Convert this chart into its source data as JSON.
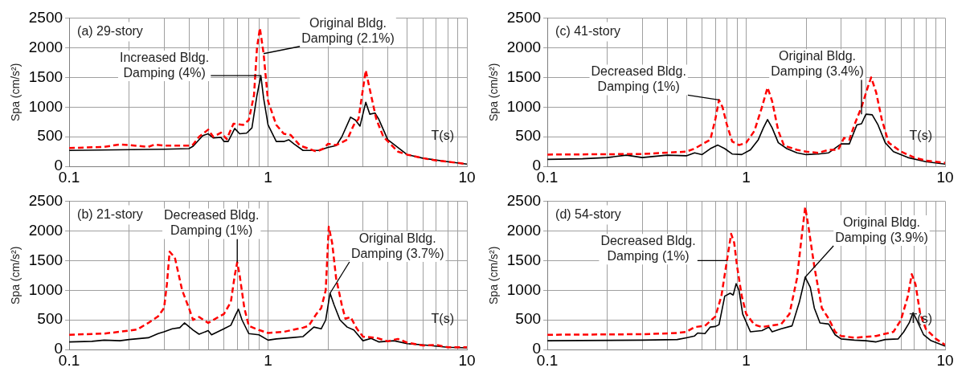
{
  "chart_data": [
    {
      "type": "line",
      "title": "(a) 29-story",
      "xlabel": "T(s)",
      "ylabel": "Spa (cm/s²)",
      "log": "x",
      "grid": true,
      "legend": false,
      "marker": "none",
      "xlim": [
        0.1,
        10
      ],
      "ylim": [
        0,
        2500
      ],
      "yticks": [
        0,
        500,
        1000,
        1500,
        2000,
        2500
      ],
      "xticks": [
        0.1,
        {
          "value": 0.2,
          "label": null
        },
        {
          "value": 0.3,
          "label": null
        },
        {
          "value": 0.4,
          "label": null
        },
        {
          "value": 0.5,
          "label": null
        },
        {
          "value": 0.6,
          "label": null
        },
        {
          "value": 0.7,
          "label": null
        },
        {
          "value": 0.8,
          "label": null
        },
        {
          "value": 0.9,
          "label": null
        },
        1,
        {
          "value": 2,
          "label": null
        },
        {
          "value": 3,
          "label": null
        },
        {
          "value": 4,
          "label": null
        },
        {
          "value": 5,
          "label": null
        },
        {
          "value": 6,
          "label": null
        },
        {
          "value": 7,
          "label": null
        },
        {
          "value": 8,
          "label": null
        },
        {
          "value": 9,
          "label": null
        },
        10
      ],
      "annotations": [
        {
          "text": "Increased Bldg. Damping (4%)",
          "x": 0.92,
          "y": 1530
        },
        {
          "text": "Original Bldg. Damping (2.1%)",
          "x": 0.95,
          "y": 1900
        }
      ],
      "series": [
        {
          "color": "#ff0000",
          "line_style": "dashed",
          "x": [
            0.1,
            0.15,
            0.18,
            0.2,
            0.25,
            0.27,
            0.3,
            0.4,
            0.42,
            0.45,
            0.5,
            0.53,
            0.58,
            0.62,
            0.67,
            0.75,
            0.8,
            0.85,
            0.88,
            0.91,
            0.95,
            1.0,
            1.1,
            1.2,
            1.3,
            1.45,
            1.6,
            1.75,
            1.9,
            2.0,
            2.2,
            2.5,
            2.7,
            2.85,
            3.0,
            3.1,
            3.2,
            3.5,
            3.8,
            4.5,
            5,
            6,
            7,
            8,
            10
          ],
          "values": [
            310,
            330,
            370,
            360,
            330,
            370,
            350,
            350,
            370,
            500,
            620,
            500,
            570,
            460,
            720,
            700,
            780,
            1200,
            2000,
            2330,
            1900,
            1100,
            700,
            550,
            530,
            350,
            300,
            250,
            300,
            380,
            360,
            450,
            700,
            800,
            1300,
            1620,
            1400,
            800,
            500,
            250,
            200,
            140,
            100,
            80,
            40
          ]
        },
        {
          "color": "#000000",
          "line_style": "solid",
          "x": [
            0.1,
            0.3,
            0.4,
            0.42,
            0.47,
            0.5,
            0.53,
            0.58,
            0.6,
            0.63,
            0.68,
            0.72,
            0.78,
            0.83,
            0.88,
            0.92,
            0.95,
            1.0,
            1.1,
            1.2,
            1.27,
            1.35,
            1.5,
            1.8,
            2.0,
            2.2,
            2.35,
            2.6,
            2.75,
            2.9,
            3.1,
            3.25,
            3.45,
            3.6,
            4.0,
            5,
            6,
            8,
            10
          ],
          "values": [
            270,
            290,
            300,
            340,
            520,
            550,
            480,
            490,
            420,
            420,
            640,
            550,
            560,
            650,
            1200,
            1530,
            1150,
            700,
            420,
            420,
            450,
            380,
            270,
            270,
            320,
            350,
            500,
            830,
            780,
            680,
            1080,
            880,
            900,
            800,
            450,
            200,
            140,
            80,
            40
          ]
        }
      ]
    },
    {
      "type": "line",
      "title": "(c) 41-story",
      "xlabel": "T(s)",
      "ylabel": "Spa (cm/s²)",
      "log": "x",
      "grid": true,
      "legend": false,
      "marker": "none",
      "xlim": [
        0.1,
        10
      ],
      "ylim": [
        0,
        2500
      ],
      "yticks": [
        0,
        500,
        1000,
        1500,
        2000,
        2500
      ],
      "xticks": [
        0.1,
        {
          "value": 0.2,
          "label": null
        },
        {
          "value": 0.3,
          "label": null
        },
        {
          "value": 0.4,
          "label": null
        },
        {
          "value": 0.5,
          "label": null
        },
        {
          "value": 0.6,
          "label": null
        },
        {
          "value": 0.7,
          "label": null
        },
        {
          "value": 0.8,
          "label": null
        },
        {
          "value": 0.9,
          "label": null
        },
        1,
        {
          "value": 2,
          "label": null
        },
        {
          "value": 3,
          "label": null
        },
        {
          "value": 4,
          "label": null
        },
        {
          "value": 5,
          "label": null
        },
        {
          "value": 6,
          "label": null
        },
        {
          "value": 7,
          "label": null
        },
        {
          "value": 8,
          "label": null
        },
        {
          "value": 9,
          "label": null
        },
        10
      ],
      "annotations": [
        {
          "text": "Decreased Bldg. Damping (1%)",
          "x": 0.73,
          "y": 1120
        },
        {
          "text": "Original Bldg. Damping (3.4%)",
          "x": 3.8,
          "y": 880
        }
      ],
      "series": [
        {
          "color": "#ff0000",
          "line_style": "dashed",
          "x": [
            0.1,
            0.3,
            0.5,
            0.55,
            0.62,
            0.66,
            0.7,
            0.73,
            0.76,
            0.8,
            0.85,
            0.92,
            1.0,
            1.1,
            1.2,
            1.28,
            1.35,
            1.45,
            1.55,
            1.8,
            2.0,
            2.3,
            2.6,
            2.9,
            3.1,
            3.3,
            3.5,
            3.8,
            4.1,
            4.25,
            4.5,
            4.8,
            5.2,
            6,
            7,
            8,
            10
          ],
          "values": [
            200,
            210,
            250,
            300,
            400,
            450,
            800,
            1120,
            1000,
            700,
            420,
            360,
            400,
            600,
            1000,
            1330,
            1100,
            600,
            350,
            280,
            250,
            230,
            280,
            280,
            480,
            450,
            700,
            1000,
            1350,
            1500,
            1250,
            800,
            400,
            250,
            150,
            100,
            60
          ]
        },
        {
          "color": "#000000",
          "line_style": "solid",
          "x": [
            0.1,
            0.15,
            0.2,
            0.25,
            0.3,
            0.4,
            0.5,
            0.55,
            0.6,
            0.66,
            0.72,
            0.78,
            0.85,
            0.95,
            1.05,
            1.15,
            1.22,
            1.28,
            1.35,
            1.45,
            1.6,
            1.8,
            2.0,
            2.3,
            2.6,
            3.0,
            3.3,
            3.6,
            3.8,
            4.0,
            4.3,
            4.6,
            5.0,
            5.5,
            6.5,
            8,
            10
          ],
          "values": [
            120,
            130,
            150,
            190,
            150,
            190,
            180,
            230,
            200,
            300,
            360,
            300,
            210,
            200,
            280,
            450,
            650,
            790,
            650,
            400,
            300,
            230,
            200,
            210,
            230,
            380,
            380,
            700,
            720,
            880,
            870,
            700,
            400,
            250,
            150,
            80,
            40
          ]
        }
      ]
    },
    {
      "type": "line",
      "title": "(b) 21-story",
      "xlabel": "T(s)",
      "ylabel": "Spa (cm/s²)",
      "log": "x",
      "grid": true,
      "legend": false,
      "marker": "none",
      "xlim": [
        0.1,
        10
      ],
      "ylim": [
        0,
        2500
      ],
      "yticks": [
        0,
        500,
        1000,
        1500,
        2000,
        2500
      ],
      "xticks": [
        0.1,
        {
          "value": 0.2,
          "label": null
        },
        {
          "value": 0.3,
          "label": null
        },
        {
          "value": 0.4,
          "label": null
        },
        {
          "value": 0.5,
          "label": null
        },
        {
          "value": 0.6,
          "label": null
        },
        {
          "value": 0.7,
          "label": null
        },
        {
          "value": 0.8,
          "label": null
        },
        {
          "value": 0.9,
          "label": null
        },
        1,
        {
          "value": 2,
          "label": null
        },
        {
          "value": 3,
          "label": null
        },
        {
          "value": 4,
          "label": null
        },
        {
          "value": 5,
          "label": null
        },
        {
          "value": 6,
          "label": null
        },
        {
          "value": 7,
          "label": null
        },
        {
          "value": 8,
          "label": null
        },
        {
          "value": 9,
          "label": null
        },
        10
      ],
      "annotations": [
        {
          "text": "Decreased Bldg. Damping (1%)",
          "x": 0.7,
          "y": 1470
        },
        {
          "text": "Original Bldg. Damping (3.7%)",
          "x": 2.05,
          "y": 950
        }
      ],
      "series": [
        {
          "color": "#ff0000",
          "line_style": "dashed",
          "x": [
            0.1,
            0.15,
            0.2,
            0.22,
            0.25,
            0.28,
            0.3,
            0.31,
            0.32,
            0.34,
            0.37,
            0.4,
            0.42,
            0.45,
            0.5,
            0.55,
            0.6,
            0.65,
            0.68,
            0.7,
            0.72,
            0.76,
            0.8,
            0.9,
            1.0,
            1.2,
            1.5,
            1.6,
            1.75,
            1.85,
            1.95,
            2.02,
            2.1,
            2.2,
            2.35,
            2.45,
            2.6,
            2.8,
            3.0,
            3.5,
            4,
            4.5,
            5,
            6,
            7,
            8,
            10
          ],
          "values": [
            250,
            270,
            320,
            340,
            450,
            560,
            700,
            1100,
            1650,
            1550,
            1000,
            700,
            500,
            550,
            450,
            530,
            600,
            800,
            1250,
            1470,
            1250,
            700,
            400,
            330,
            280,
            300,
            370,
            400,
            600,
            700,
            1000,
            2070,
            1800,
            1200,
            750,
            520,
            550,
            350,
            220,
            200,
            140,
            180,
            120,
            70,
            80,
            40,
            40
          ]
        },
        {
          "color": "#000000",
          "line_style": "solid",
          "x": [
            0.1,
            0.13,
            0.15,
            0.18,
            0.2,
            0.25,
            0.28,
            0.3,
            0.33,
            0.36,
            0.38,
            0.42,
            0.45,
            0.5,
            0.52,
            0.6,
            0.65,
            0.69,
            0.71,
            0.74,
            0.8,
            0.9,
            1.0,
            1.1,
            1.3,
            1.5,
            1.7,
            1.85,
            1.95,
            2.05,
            2.15,
            2.3,
            2.5,
            2.7,
            3.0,
            3.3,
            3.6,
            4.3,
            5,
            6,
            8,
            10
          ],
          "values": [
            130,
            140,
            160,
            150,
            170,
            200,
            270,
            300,
            350,
            370,
            450,
            330,
            260,
            320,
            250,
            350,
            410,
            600,
            680,
            500,
            270,
            250,
            160,
            180,
            200,
            220,
            380,
            350,
            500,
            950,
            750,
            500,
            380,
            330,
            150,
            190,
            130,
            150,
            100,
            80,
            40,
            30
          ]
        }
      ]
    },
    {
      "type": "line",
      "title": "(d) 54-story",
      "xlabel": "T(s)",
      "ylabel": "Spa (cm/s²)",
      "log": "x",
      "grid": true,
      "legend": false,
      "marker": "none",
      "xlim": [
        0.1,
        10
      ],
      "ylim": [
        0,
        2500
      ],
      "yticks": [
        0,
        500,
        1000,
        1500,
        2000,
        2500
      ],
      "xticks": [
        0.1,
        {
          "value": 0.2,
          "label": null
        },
        {
          "value": 0.3,
          "label": null
        },
        {
          "value": 0.4,
          "label": null
        },
        {
          "value": 0.5,
          "label": null
        },
        {
          "value": 0.6,
          "label": null
        },
        {
          "value": 0.7,
          "label": null
        },
        {
          "value": 0.8,
          "label": null
        },
        {
          "value": 0.9,
          "label": null
        },
        1,
        {
          "value": 2,
          "label": null
        },
        {
          "value": 3,
          "label": null
        },
        {
          "value": 4,
          "label": null
        },
        {
          "value": 5,
          "label": null
        },
        {
          "value": 6,
          "label": null
        },
        {
          "value": 7,
          "label": null
        },
        {
          "value": 8,
          "label": null
        },
        {
          "value": 9,
          "label": null
        },
        10
      ],
      "annotations": [
        {
          "text": "Decreased Bldg. Damping (1%)",
          "x": 0.8,
          "y": 1500
        },
        {
          "text": "Original Bldg. Damping (3.9%)",
          "x": 1.98,
          "y": 1220
        }
      ],
      "series": [
        {
          "color": "#ff0000",
          "line_style": "dashed",
          "x": [
            0.1,
            0.3,
            0.45,
            0.5,
            0.55,
            0.62,
            0.7,
            0.75,
            0.8,
            0.84,
            0.87,
            0.9,
            0.95,
            1.0,
            1.1,
            1.2,
            1.3,
            1.5,
            1.65,
            1.8,
            1.9,
            1.98,
            2.05,
            2.2,
            2.4,
            2.6,
            2.8,
            3.0,
            3.5,
            4.5,
            5.5,
            6.0,
            6.5,
            6.8,
            7.1,
            7.5,
            8,
            9,
            10
          ],
          "values": [
            250,
            260,
            280,
            300,
            380,
            400,
            560,
            900,
            1500,
            1950,
            1800,
            1400,
            900,
            600,
            420,
            380,
            400,
            430,
            600,
            1200,
            1900,
            2400,
            2100,
            1400,
            700,
            520,
            300,
            230,
            200,
            230,
            300,
            500,
            900,
            1270,
            1100,
            600,
            350,
            180,
            80
          ]
        },
        {
          "color": "#000000",
          "line_style": "solid",
          "x": [
            0.1,
            0.3,
            0.45,
            0.5,
            0.55,
            0.57,
            0.62,
            0.66,
            0.7,
            0.73,
            0.78,
            0.83,
            0.86,
            0.89,
            0.92,
            0.96,
            1.05,
            1.2,
            1.3,
            1.35,
            1.5,
            1.7,
            1.85,
            1.98,
            2.1,
            2.2,
            2.35,
            2.6,
            2.8,
            3.0,
            3.5,
            4,
            4.5,
            5,
            5.8,
            6.2,
            6.6,
            6.9,
            7.2,
            7.8,
            8.5,
            10
          ],
          "values": [
            150,
            160,
            170,
            200,
            230,
            280,
            270,
            380,
            390,
            420,
            900,
            950,
            920,
            1110,
            1000,
            600,
            300,
            320,
            380,
            300,
            350,
            400,
            800,
            1220,
            1050,
            700,
            450,
            430,
            250,
            180,
            160,
            150,
            130,
            170,
            180,
            300,
            450,
            620,
            500,
            250,
            150,
            60
          ]
        }
      ]
    }
  ]
}
